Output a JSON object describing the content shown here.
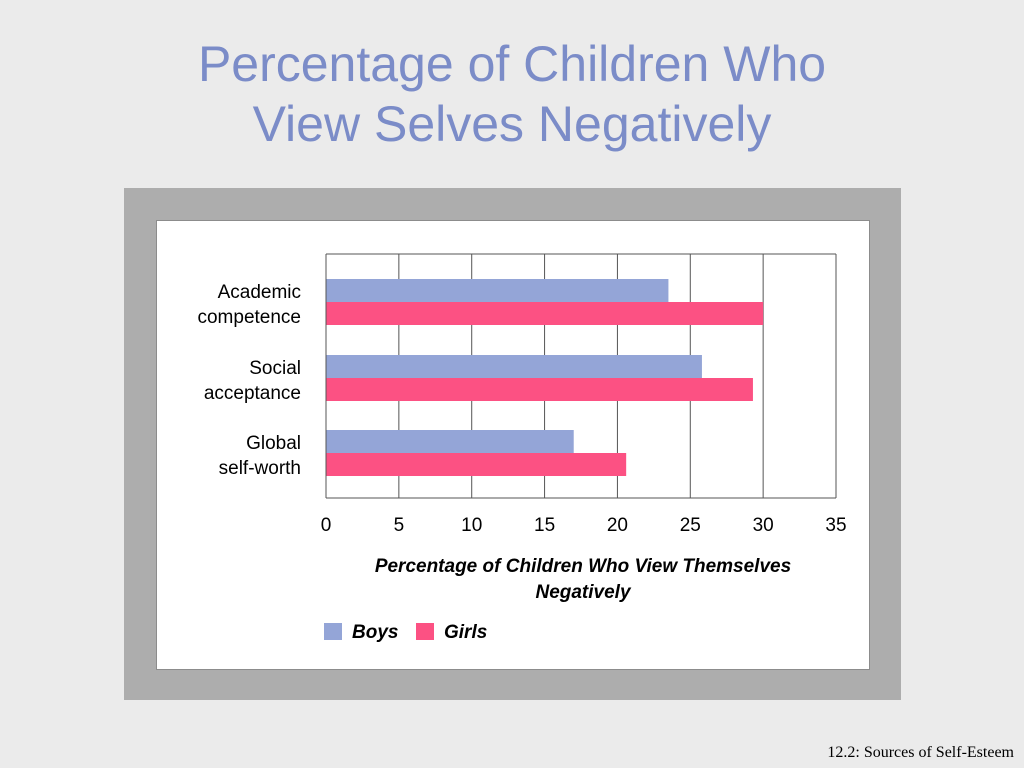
{
  "slide": {
    "title_line1": "Percentage of Children Who",
    "title_line2": "View Selves Negatively",
    "footer": "12.2: Sources of Self-Esteem"
  },
  "chart_data": {
    "type": "bar",
    "orientation": "horizontal",
    "categories": [
      [
        "Academic",
        "competence"
      ],
      [
        "Social",
        "acceptance"
      ],
      [
        "Global",
        "self-worth"
      ]
    ],
    "series": [
      {
        "name": "Boys",
        "color": "#94a5d7",
        "values": [
          23.5,
          25.8,
          17.0
        ]
      },
      {
        "name": "Girls",
        "color": "#fc5183",
        "values": [
          30.0,
          29.3,
          20.6
        ]
      }
    ],
    "xticks": [
      "0",
      "5",
      "10",
      "15",
      "20",
      "25",
      "30",
      "35"
    ],
    "xlim": [
      0,
      35
    ],
    "xlabel_line1": "Percentage of Children Who View Themselves",
    "xlabel_line2": "Negatively",
    "grid": "vertical",
    "legend_position": "bottom-left"
  }
}
